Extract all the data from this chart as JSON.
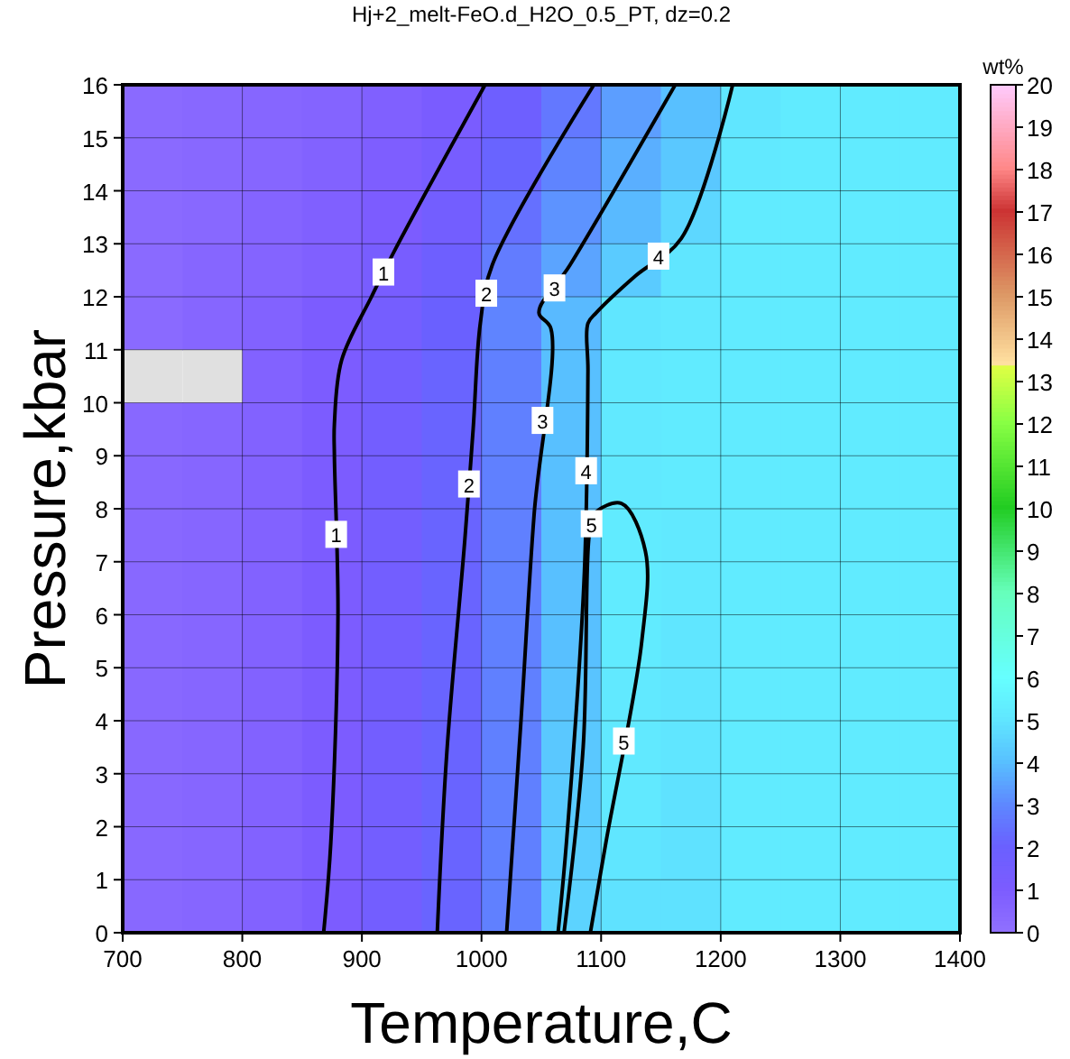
{
  "chart_data": {
    "type": "heatmap",
    "title": "Hj+2_melt-FeO.d_H2O_0.5_PT, dz=0.2",
    "xlabel": "Temperature,C",
    "ylabel": "Pressure,kbar",
    "clabel": "wt%",
    "x": [
      725,
      775,
      825,
      875,
      925,
      975,
      1025,
      1075,
      1125,
      1175,
      1225,
      1275,
      1325,
      1375
    ],
    "y": [
      15.5,
      14.5,
      13.5,
      12.5,
      11.5,
      10.5,
      9.5,
      8.5,
      7.5,
      6.5,
      5.5,
      4.5,
      3.5,
      2.5,
      1.5,
      0.5
    ],
    "cells": [
      [
        0.3,
        0.4,
        0.5,
        0.6,
        0.8,
        1.1,
        1.8,
        2.6,
        3.4,
        4.0,
        5.0,
        5.2,
        5.2,
        5.2
      ],
      [
        0.3,
        0.4,
        0.5,
        0.7,
        0.9,
        1.3,
        2.1,
        2.9,
        3.7,
        4.2,
        5.1,
        5.2,
        5.2,
        5.2
      ],
      [
        0.3,
        0.4,
        0.6,
        0.8,
        1.0,
        1.5,
        2.4,
        3.2,
        3.9,
        4.6,
        5.2,
        5.2,
        5.2,
        5.2
      ],
      [
        0.3,
        0.5,
        0.6,
        0.8,
        1.2,
        1.8,
        2.7,
        3.5,
        4.3,
        5.0,
        5.2,
        5.2,
        5.2,
        5.2
      ],
      [
        0.3,
        0.5,
        0.7,
        1.0,
        1.4,
        2.0,
        2.9,
        3.9,
        5.0,
        5.1,
        5.2,
        5.2,
        5.2,
        5.2
      ],
      [
        null,
        null,
        0.7,
        1.0,
        1.5,
        2.1,
        2.8,
        4.0,
        5.1,
        5.2,
        5.2,
        5.2,
        5.2,
        5.2
      ],
      [
        0.4,
        0.5,
        0.7,
        1.0,
        1.5,
        2.1,
        2.8,
        4.0,
        5.1,
        5.2,
        5.2,
        5.2,
        5.2,
        5.2
      ],
      [
        0.4,
        0.5,
        0.7,
        1.0,
        1.5,
        2.1,
        2.8,
        4.0,
        5.1,
        5.2,
        5.2,
        5.2,
        5.2,
        5.2
      ],
      [
        0.4,
        0.5,
        0.7,
        1.0,
        1.5,
        2.1,
        2.8,
        4.0,
        5.2,
        5.1,
        5.2,
        5.2,
        5.2,
        5.2
      ],
      [
        0.4,
        0.5,
        0.7,
        1.0,
        1.5,
        2.1,
        2.8,
        4.0,
        5.2,
        5.1,
        5.2,
        5.2,
        5.2,
        5.2
      ],
      [
        0.4,
        0.5,
        0.7,
        1.0,
        1.5,
        2.1,
        2.8,
        4.0,
        5.2,
        5.0,
        5.2,
        5.2,
        5.2,
        5.2
      ],
      [
        0.4,
        0.5,
        0.7,
        1.0,
        1.5,
        2.1,
        2.8,
        4.1,
        5.1,
        5.0,
        5.2,
        5.2,
        5.2,
        5.2
      ],
      [
        0.4,
        0.5,
        0.7,
        1.0,
        1.5,
        2.1,
        2.8,
        4.2,
        5.1,
        5.0,
        5.2,
        5.2,
        5.2,
        5.2
      ],
      [
        0.4,
        0.5,
        0.7,
        1.0,
        1.5,
        2.1,
        2.8,
        4.3,
        5.1,
        4.9,
        5.2,
        5.2,
        5.2,
        5.2
      ],
      [
        0.4,
        0.5,
        0.7,
        1.0,
        1.5,
        2.1,
        2.8,
        4.4,
        5.0,
        4.9,
        5.2,
        5.2,
        5.2,
        5.2
      ],
      [
        0.4,
        0.5,
        0.7,
        1.0,
        1.5,
        2.1,
        2.8,
        4.5,
        4.9,
        4.9,
        5.2,
        5.2,
        5.2,
        5.2
      ]
    ],
    "xlim": [
      700,
      1400
    ],
    "ylim": [
      0,
      16
    ],
    "xticks": [
      700,
      800,
      900,
      1000,
      1100,
      1200,
      1300,
      1400
    ],
    "yticks": [
      0,
      1,
      2,
      3,
      4,
      5,
      6,
      7,
      8,
      9,
      10,
      11,
      12,
      13,
      14,
      15,
      16
    ],
    "clim": [
      0,
      20
    ],
    "cticks": [
      0,
      1,
      2,
      3,
      4,
      5,
      6,
      7,
      8,
      9,
      10,
      11,
      12,
      13,
      14,
      15,
      16,
      17,
      18,
      19,
      20
    ],
    "grid": true,
    "series": [
      {
        "type": "line",
        "name": "1",
        "color": "#000000",
        "x": [
          868,
          874,
          880,
          877,
          877,
          883,
          908,
          928,
          1003
        ],
        "values": [
          0,
          1.7,
          6,
          9,
          9.6,
          10.8,
          12,
          12.9,
          16
        ]
      },
      {
        "type": "line",
        "name": "2",
        "color": "#000000",
        "x": [
          963,
          971,
          986,
          993,
          999,
          1009,
          1094
        ],
        "values": [
          0,
          3.4,
          7.4,
          9.5,
          11.5,
          12.6,
          16
        ]
      },
      {
        "type": "line",
        "name": "3",
        "color": "#000000",
        "x": [
          1021,
          1033,
          1044,
          1058,
          1048,
          1074,
          1162
        ],
        "values": [
          0,
          4,
          7.9,
          11.4,
          11.7,
          12.6,
          16
        ]
      },
      {
        "type": "line",
        "name": "4",
        "color": "#000000",
        "x": [
          1064,
          1071,
          1086,
          1089,
          1089,
          1096,
          1129,
          1167,
          1210
        ],
        "values": [
          0,
          1.7,
          6.8,
          10.6,
          11.5,
          11.7,
          12.4,
          13.1,
          16
        ]
      },
      {
        "type": "line",
        "name": "5",
        "color": "#000000",
        "x": [
          1069,
          1085,
          1090,
          1094,
          1117,
          1137,
          1134,
          1104,
          1091
        ],
        "values": [
          0,
          3.5,
          7.5,
          7.9,
          8.1,
          7.2,
          5.5,
          1.7,
          0
        ]
      }
    ]
  }
}
